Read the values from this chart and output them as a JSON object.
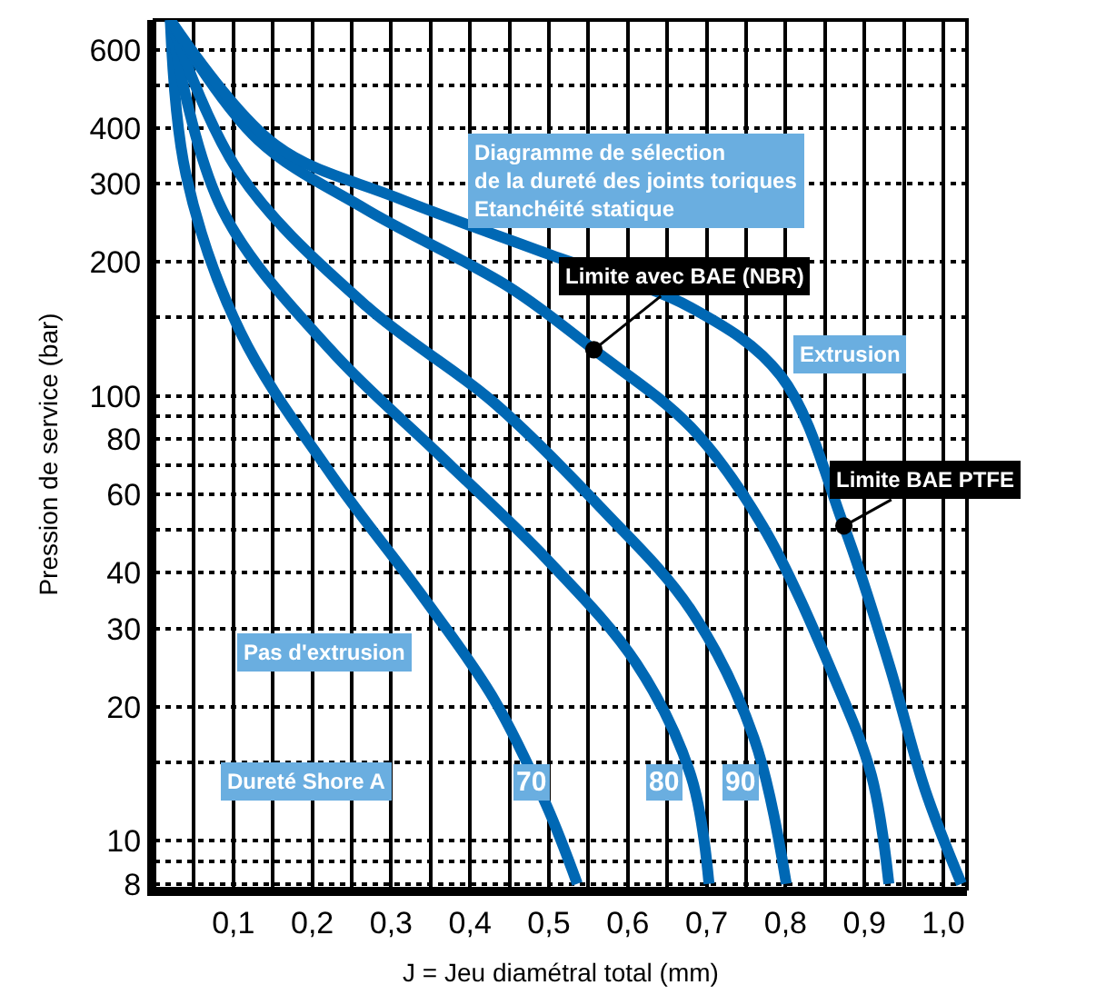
{
  "chart_data": {
    "type": "line",
    "xlabel": "J = Jeu diamétral total (mm)",
    "ylabel": "Pression de service (bar)",
    "annotations": [
      "Diagramme de sélection\nde la dureté des joints toriques\nEtanchéité statique",
      {
        "text": "Limite avec BAE (NBR)",
        "x": 0.557,
        "y": 127
      },
      "Extrusion",
      {
        "text": "Limite BAE PTFE",
        "x": 0.874,
        "y": 51
      },
      "Pas d'extrusion",
      "Dureté Shore A"
    ],
    "series": [
      {
        "name": "70",
        "color": "#0068b4",
        "x": [
          0.02,
          0.04,
          0.109,
          0.223,
          0.337,
          0.429,
          0.497,
          0.536
        ],
        "values": [
          700,
          314,
          139,
          67,
          36,
          21,
          12,
          8
        ]
      },
      {
        "name": "80",
        "color": "#0068b4",
        "x": [
          0.02,
          0.086,
          0.223,
          0.36,
          0.497,
          0.611,
          0.68,
          0.703
        ],
        "values": [
          700,
          262,
          127,
          74,
          43,
          25,
          14,
          8
        ]
      },
      {
        "name": "90",
        "color": "#0068b4",
        "x": [
          0.02,
          0.109,
          0.269,
          0.429,
          0.566,
          0.68,
          0.76,
          0.801
        ],
        "values": [
          700,
          314,
          159,
          97,
          56,
          33,
          17,
          8
        ]
      },
      {
        "color": "#0068b4",
        "x": [
          0.02,
          0.131,
          0.269,
          0.451,
          0.557,
          0.68,
          0.771,
          0.863,
          0.909,
          0.931
        ],
        "values": [
          700,
          377,
          262,
          175,
          127,
          85,
          51,
          23,
          14,
          8
        ]
      },
      {
        "color": "#0068b4",
        "x": [
          0.02,
          0.154,
          0.307,
          0.497,
          0.68,
          0.794,
          0.874,
          0.931,
          0.977,
          1.023
        ],
        "values": [
          700,
          366,
          279,
          209,
          158,
          111,
          51,
          25,
          13,
          8
        ]
      }
    ],
    "log": "y",
    "xlim": [
      0,
      1.03
    ],
    "ylim": [
      7.8,
      700
    ],
    "xticks": [
      {
        "value": 0.05,
        "label": null
      },
      {
        "value": 0.1,
        "label": "0,1"
      },
      {
        "value": 0.15,
        "label": null
      },
      {
        "value": 0.2,
        "label": "0,2"
      },
      {
        "value": 0.25,
        "label": null
      },
      {
        "value": 0.3,
        "label": "0,3"
      },
      {
        "value": 0.35,
        "label": null
      },
      {
        "value": 0.4,
        "label": "0,4"
      },
      {
        "value": 0.45,
        "label": null
      },
      {
        "value": 0.5,
        "label": "0,5"
      },
      {
        "value": 0.55,
        "label": null
      },
      {
        "value": 0.6,
        "label": "0,6"
      },
      {
        "value": 0.65,
        "label": null
      },
      {
        "value": 0.7,
        "label": "0,7"
      },
      {
        "value": 0.75,
        "label": null
      },
      {
        "value": 0.8,
        "label": "0,8"
      },
      {
        "value": 0.85,
        "label": null
      },
      {
        "value": 0.9,
        "label": "0,9"
      },
      {
        "value": 0.95,
        "label": null
      },
      {
        "value": 1.0,
        "label": "1,0"
      }
    ],
    "yticks": [
      8,
      {
        "value": 9,
        "label": null
      },
      10,
      {
        "value": 15,
        "label": null
      },
      20,
      30,
      40,
      {
        "value": 50,
        "label": null
      },
      60,
      {
        "value": 70,
        "label": null
      },
      80,
      {
        "value": 90,
        "label": null
      },
      100,
      {
        "value": 150,
        "label": null
      },
      200,
      300,
      400,
      {
        "value": 500,
        "label": null
      },
      600
    ],
    "grid": true,
    "legend": false,
    "marker": "none",
    "line_style": "solid"
  }
}
